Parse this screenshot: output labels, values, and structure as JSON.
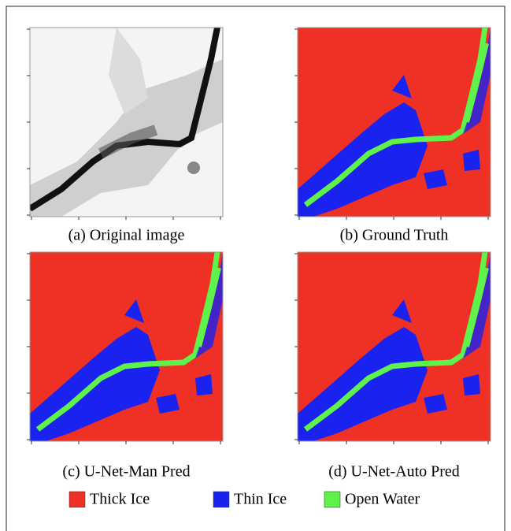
{
  "figure": {
    "panels": [
      {
        "caption": "(a) Original image"
      },
      {
        "caption": "(b) Ground Truth"
      },
      {
        "caption": "(c) U-Net-Man Pred"
      },
      {
        "caption": "(d) U-Net-Auto Pred"
      }
    ],
    "legend": [
      {
        "label": "Thick Ice",
        "color": "#ee3124"
      },
      {
        "label": "Thin Ice",
        "color": "#1a22f0"
      },
      {
        "label": "Open Water",
        "color": "#5ef24a"
      }
    ]
  }
}
